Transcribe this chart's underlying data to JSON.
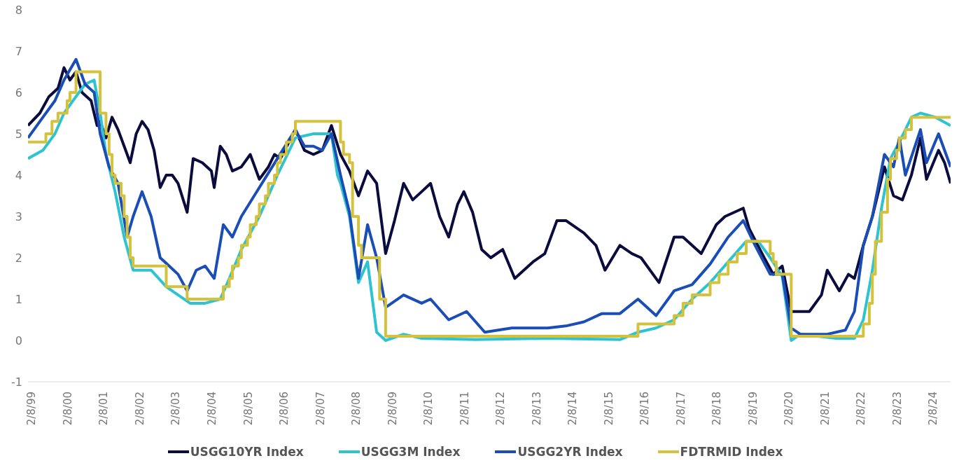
{
  "chart_data": {
    "type": "line",
    "legend": "bottom",
    "ylim": [
      -1,
      8
    ],
    "yticks": [
      -1,
      0,
      1,
      2,
      3,
      4,
      5,
      6,
      7,
      8
    ],
    "xlim": [
      "1999-01",
      "2024-08"
    ],
    "xticks": [
      {
        "value": "1999-02-08",
        "label": "2/8/99"
      },
      {
        "value": "2000-02-08",
        "label": "2/8/00"
      },
      {
        "value": "2001-02-08",
        "label": "2/8/01"
      },
      {
        "value": "2002-02-08",
        "label": "2/8/02"
      },
      {
        "value": "2003-02-08",
        "label": "2/8/03"
      },
      {
        "value": "2004-02-08",
        "label": "2/8/04"
      },
      {
        "value": "2005-02-08",
        "label": "2/8/05"
      },
      {
        "value": "2006-02-08",
        "label": "2/8/06"
      },
      {
        "value": "2007-02-08",
        "label": "2/8/07"
      },
      {
        "value": "2008-02-08",
        "label": "2/8/08"
      },
      {
        "value": "2009-02-08",
        "label": "2/8/09"
      },
      {
        "value": "2010-02-08",
        "label": "2/8/10"
      },
      {
        "value": "2011-02-08",
        "label": "2/8/11"
      },
      {
        "value": "2012-02-08",
        "label": "2/8/12"
      },
      {
        "value": "2013-02-08",
        "label": "2/8/13"
      },
      {
        "value": "2014-02-08",
        "label": "2/8/14"
      },
      {
        "value": "2015-02-08",
        "label": "2/8/15"
      },
      {
        "value": "2016-02-08",
        "label": "2/8/16"
      },
      {
        "value": "2017-02-08",
        "label": "2/8/17"
      },
      {
        "value": "2018-02-08",
        "label": "2/8/18"
      },
      {
        "value": "2019-02-08",
        "label": "2/8/19"
      },
      {
        "value": "2020-02-08",
        "label": "2/8/20"
      },
      {
        "value": "2021-02-08",
        "label": "2/8/21"
      },
      {
        "value": "2022-02-08",
        "label": "2/8/22"
      },
      {
        "value": "2023-02-08",
        "label": "2/8/23"
      },
      {
        "value": "2024-02-08",
        "label": "2/8/24"
      }
    ],
    "series": [
      {
        "name": "USGG10YR Index",
        "color": "#0b0c3e",
        "x": [
          "1999-01",
          "1999-05",
          "1999-08",
          "1999-11",
          "2000-01",
          "2000-03",
          "2000-05",
          "2000-07",
          "2000-10",
          "2000-12",
          "2001-01",
          "2001-03",
          "2001-05",
          "2001-07",
          "2001-09",
          "2001-11",
          "2002-01",
          "2002-03",
          "2002-05",
          "2002-07",
          "2002-09",
          "2002-11",
          "2003-01",
          "2003-03",
          "2003-06",
          "2003-08",
          "2003-11",
          "2004-02",
          "2004-03",
          "2004-05",
          "2004-07",
          "2004-09",
          "2004-12",
          "2005-03",
          "2005-06",
          "2005-09",
          "2005-11",
          "2006-01",
          "2006-06",
          "2006-09",
          "2006-12",
          "2007-03",
          "2007-06",
          "2007-09",
          "2007-12",
          "2008-03",
          "2008-06",
          "2008-09",
          "2008-12",
          "2009-03",
          "2009-06",
          "2009-09",
          "2009-12",
          "2010-03",
          "2010-06",
          "2010-09",
          "2010-12",
          "2011-02",
          "2011-05",
          "2011-08",
          "2011-11",
          "2012-03",
          "2012-07",
          "2012-10",
          "2013-01",
          "2013-05",
          "2013-09",
          "2013-12",
          "2014-06",
          "2014-10",
          "2015-01",
          "2015-06",
          "2015-10",
          "2016-01",
          "2016-07",
          "2016-12",
          "2017-03",
          "2017-09",
          "2018-02",
          "2018-05",
          "2018-11",
          "2019-01",
          "2019-06",
          "2019-09",
          "2019-12",
          "2020-03",
          "2020-06",
          "2020-09",
          "2021-01",
          "2021-03",
          "2021-07",
          "2021-10",
          "2021-12",
          "2022-03",
          "2022-06",
          "2022-10",
          "2023-01",
          "2023-04",
          "2023-07",
          "2023-10",
          "2023-12",
          "2024-04",
          "2024-06",
          "2024-08"
        ],
        "values": [
          5.2,
          5.5,
          5.9,
          6.1,
          6.6,
          6.3,
          6.5,
          6.0,
          5.8,
          5.2,
          5.3,
          4.9,
          5.4,
          5.1,
          4.7,
          4.3,
          5.0,
          5.3,
          5.1,
          4.6,
          3.7,
          4.0,
          4.0,
          3.8,
          3.1,
          4.4,
          4.3,
          4.1,
          3.7,
          4.7,
          4.5,
          4.1,
          4.2,
          4.5,
          3.9,
          4.2,
          4.5,
          4.4,
          5.1,
          4.6,
          4.5,
          4.6,
          5.2,
          4.5,
          4.1,
          3.5,
          4.1,
          3.8,
          2.1,
          2.9,
          3.8,
          3.4,
          3.6,
          3.8,
          3.0,
          2.5,
          3.3,
          3.6,
          3.1,
          2.2,
          2.0,
          2.2,
          1.5,
          1.7,
          1.9,
          2.1,
          2.9,
          2.9,
          2.6,
          2.3,
          1.7,
          2.3,
          2.1,
          2.0,
          1.4,
          2.5,
          2.5,
          2.1,
          2.8,
          3.0,
          3.2,
          2.7,
          2.0,
          1.6,
          1.8,
          0.7,
          0.7,
          0.7,
          1.1,
          1.7,
          1.2,
          1.6,
          1.5,
          2.3,
          3.0,
          4.2,
          3.5,
          3.4,
          4.0,
          4.9,
          3.9,
          4.6,
          4.3,
          3.8
        ]
      },
      {
        "name": "USGG3M Index",
        "color": "#2ec3d1",
        "x": [
          "1999-01",
          "1999-06",
          "1999-10",
          "2000-01",
          "2000-05",
          "2000-08",
          "2000-11",
          "2001-01",
          "2001-03",
          "2001-06",
          "2001-09",
          "2001-12",
          "2002-06",
          "2002-11",
          "2003-03",
          "2003-07",
          "2003-12",
          "2004-05",
          "2004-08",
          "2004-12",
          "2005-06",
          "2005-12",
          "2006-06",
          "2006-12",
          "2007-06",
          "2007-08",
          "2007-09",
          "2007-12",
          "2008-03",
          "2008-06",
          "2008-09",
          "2008-12",
          "2009-06",
          "2009-12",
          "2011-06",
          "2013-06",
          "2015-06",
          "2015-12",
          "2016-06",
          "2016-12",
          "2017-06",
          "2017-12",
          "2018-06",
          "2018-12",
          "2019-04",
          "2019-08",
          "2019-12",
          "2020-03",
          "2020-06",
          "2021-06",
          "2021-12",
          "2022-03",
          "2022-06",
          "2022-09",
          "2022-12",
          "2023-03",
          "2023-07",
          "2023-10",
          "2024-03",
          "2024-08"
        ],
        "values": [
          4.4,
          4.6,
          5.0,
          5.5,
          5.9,
          6.2,
          6.3,
          5.5,
          4.5,
          3.6,
          2.5,
          1.7,
          1.7,
          1.3,
          1.1,
          0.9,
          0.9,
          1.0,
          1.5,
          2.2,
          3.0,
          4.0,
          4.9,
          5.0,
          5.0,
          4.0,
          3.8,
          3.0,
          1.4,
          1.9,
          0.2,
          0.0,
          0.15,
          0.05,
          0.02,
          0.05,
          0.02,
          0.2,
          0.3,
          0.5,
          1.0,
          1.4,
          1.9,
          2.4,
          2.4,
          2.0,
          1.55,
          0.0,
          0.15,
          0.05,
          0.05,
          0.5,
          1.7,
          3.2,
          4.4,
          4.8,
          5.4,
          5.5,
          5.4,
          5.2
        ]
      },
      {
        "name": "USGG2YR Index",
        "color": "#1a4db5",
        "x": [
          "1999-01",
          "1999-06",
          "1999-10",
          "2000-01",
          "2000-05",
          "2000-08",
          "2000-11",
          "2001-01",
          "2001-04",
          "2001-07",
          "2001-10",
          "2001-12",
          "2002-03",
          "2002-06",
          "2002-09",
          "2002-12",
          "2003-03",
          "2003-06",
          "2003-09",
          "2003-12",
          "2004-03",
          "2004-06",
          "2004-09",
          "2004-12",
          "2005-06",
          "2005-12",
          "2006-06",
          "2006-09",
          "2006-12",
          "2007-03",
          "2007-06",
          "2007-09",
          "2007-12",
          "2008-03",
          "2008-06",
          "2008-09",
          "2008-12",
          "2009-06",
          "2009-12",
          "2010-03",
          "2010-09",
          "2011-03",
          "2011-09",
          "2012-06",
          "2013-06",
          "2013-12",
          "2014-06",
          "2014-12",
          "2015-06",
          "2015-12",
          "2016-06",
          "2016-12",
          "2017-06",
          "2017-12",
          "2018-06",
          "2018-11",
          "2019-03",
          "2019-08",
          "2019-12",
          "2020-03",
          "2020-06",
          "2021-03",
          "2021-09",
          "2021-12",
          "2022-03",
          "2022-06",
          "2022-10",
          "2023-01",
          "2023-03",
          "2023-05",
          "2023-10",
          "2023-12",
          "2024-04",
          "2024-08"
        ],
        "values": [
          4.9,
          5.4,
          5.8,
          6.3,
          6.8,
          6.2,
          6.0,
          5.0,
          4.2,
          3.8,
          2.5,
          3.0,
          3.6,
          3.0,
          2.0,
          1.8,
          1.6,
          1.2,
          1.7,
          1.8,
          1.5,
          2.8,
          2.5,
          3.0,
          3.7,
          4.4,
          5.1,
          4.7,
          4.7,
          4.6,
          5.0,
          4.0,
          3.1,
          1.5,
          2.8,
          2.0,
          0.8,
          1.1,
          0.9,
          1.0,
          0.5,
          0.7,
          0.2,
          0.3,
          0.3,
          0.35,
          0.45,
          0.65,
          0.65,
          1.0,
          0.6,
          1.2,
          1.35,
          1.85,
          2.5,
          2.9,
          2.3,
          1.6,
          1.6,
          0.3,
          0.15,
          0.15,
          0.25,
          0.7,
          2.3,
          3.0,
          4.5,
          4.2,
          4.9,
          4.0,
          5.1,
          4.3,
          5.0,
          4.2
        ]
      },
      {
        "name": "FDTRMID Index",
        "color": "#d5c23c",
        "type": "step",
        "x": [
          "1999-01",
          "1999-07",
          "1999-09",
          "1999-11",
          "2000-02",
          "2000-03",
          "2000-05",
          "2001-01",
          "2001-03",
          "2001-04",
          "2001-05",
          "2001-06",
          "2001-08",
          "2001-09",
          "2001-10",
          "2001-11",
          "2001-12",
          "2002-11",
          "2003-06",
          "2004-06",
          "2004-08",
          "2004-09",
          "2004-11",
          "2004-12",
          "2005-02",
          "2005-03",
          "2005-05",
          "2005-06",
          "2005-08",
          "2005-09",
          "2005-11",
          "2005-12",
          "2006-01",
          "2006-03",
          "2006-05",
          "2006-06",
          "2007-09",
          "2007-10",
          "2007-12",
          "2008-01",
          "2008-03",
          "2008-04",
          "2008-10",
          "2008-12",
          "2015-12",
          "2016-12",
          "2017-03",
          "2017-06",
          "2017-12",
          "2018-03",
          "2018-06",
          "2018-09",
          "2018-12",
          "2019-08",
          "2019-09",
          "2019-10",
          "2020-03",
          "2022-03",
          "2022-05",
          "2022-06",
          "2022-07",
          "2022-09",
          "2022-11",
          "2022-12",
          "2023-02",
          "2023-03",
          "2023-05",
          "2023-07",
          "2024-08"
        ],
        "values": [
          4.8,
          5.0,
          5.3,
          5.5,
          5.8,
          6.0,
          6.5,
          5.5,
          5.0,
          4.5,
          4.0,
          3.8,
          3.5,
          3.0,
          2.5,
          2.0,
          1.8,
          1.3,
          1.0,
          1.3,
          1.5,
          1.8,
          2.0,
          2.3,
          2.5,
          2.8,
          3.0,
          3.3,
          3.5,
          3.8,
          4.0,
          4.3,
          4.5,
          4.8,
          5.0,
          5.3,
          4.8,
          4.5,
          4.3,
          3.0,
          2.3,
          2.0,
          1.0,
          0.1,
          0.4,
          0.6,
          0.9,
          1.1,
          1.4,
          1.6,
          1.9,
          2.1,
          2.4,
          2.1,
          1.9,
          1.6,
          0.1,
          0.4,
          0.9,
          1.6,
          2.4,
          3.1,
          3.9,
          4.4,
          4.6,
          4.9,
          5.1,
          5.4,
          5.4
        ]
      }
    ]
  }
}
